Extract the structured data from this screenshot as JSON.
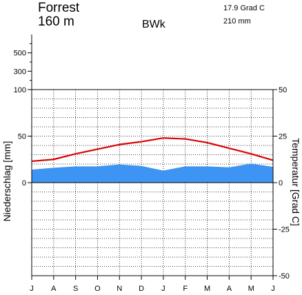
{
  "header": {
    "station": "Forrest",
    "elevation": "160 m",
    "climate_class": "BWk",
    "mean_temperature": "17.9 Grad C",
    "annual_precipitation": "210 mm"
  },
  "chart_data": {
    "type": "line",
    "title": "",
    "xlabel": "",
    "ylabel_left": "Niederschlag [mm]",
    "ylabel_right": "Temperatur [Grad C]",
    "categories": [
      "J",
      "A",
      "S",
      "O",
      "N",
      "D",
      "J",
      "F",
      "M",
      "A",
      "M",
      "J"
    ],
    "series": [
      {
        "axis": "left",
        "kind": "area",
        "color": "#3d94f2",
        "values": [
          14,
          16,
          17.5,
          17.5,
          19.5,
          18,
          13,
          17.5,
          17.5,
          16.5,
          20.5,
          17
        ]
      },
      {
        "axis": "right",
        "kind": "line",
        "color": "#dd0000",
        "values": [
          11.5,
          12.5,
          15.5,
          18,
          20.5,
          22,
          24,
          23.5,
          21.5,
          18.5,
          15.5,
          12
        ]
      }
    ],
    "precip_ticks_linear": [
      0,
      50,
      100
    ],
    "precip_ticks_compressed": [
      300,
      500
    ],
    "temp_ticks": [
      -50,
      -25,
      0,
      25,
      50
    ],
    "temp_ylim": [
      -50,
      50
    ],
    "precip_ylim": [
      0,
      100
    ],
    "grid": true
  }
}
